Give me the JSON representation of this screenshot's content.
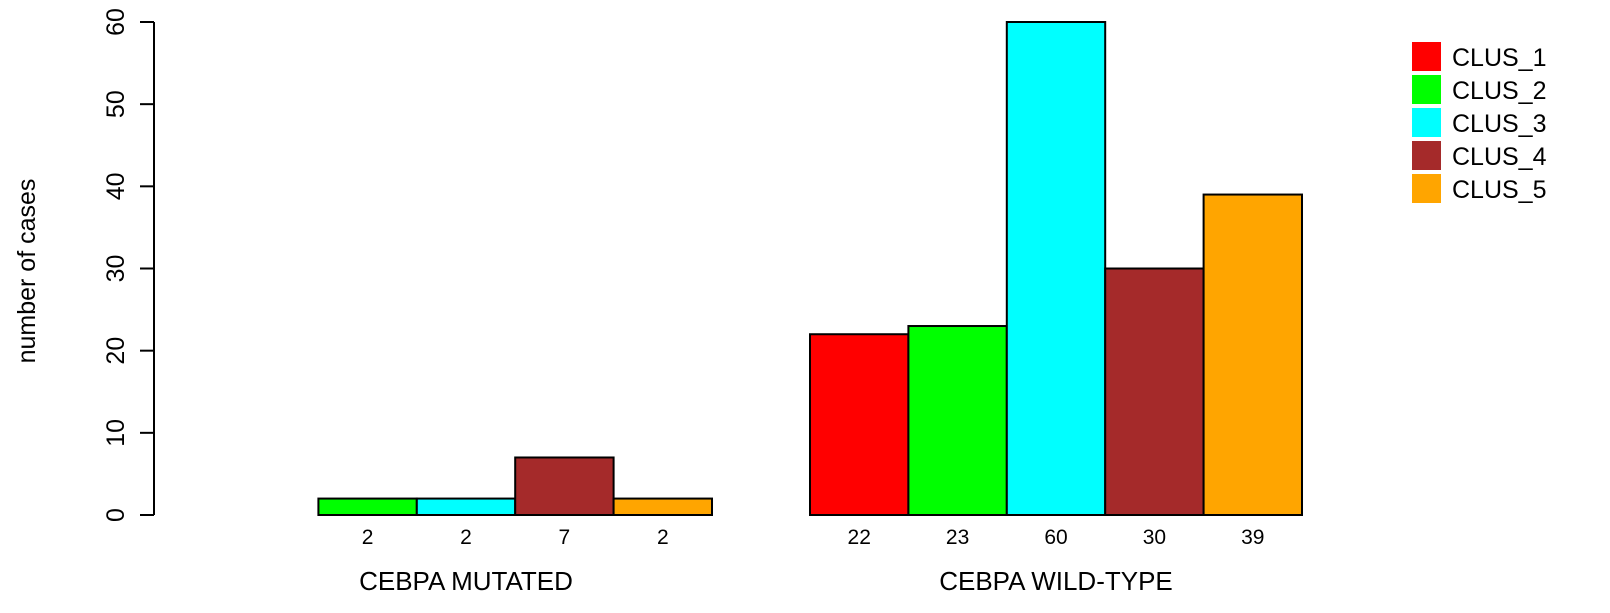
{
  "chart_data": {
    "type": "bar",
    "grouped": true,
    "title": "",
    "xlabel": "",
    "ylabel": "number of cases",
    "ylim": [
      0,
      60
    ],
    "yticks": [
      0,
      10,
      20,
      30,
      40,
      50,
      60
    ],
    "grid": false,
    "legend_position": "top-right",
    "groups": [
      "CEBPA MUTATED",
      "CEBPA WILD-TYPE"
    ],
    "series": [
      {
        "name": "CLUS_1",
        "color": "#ff0000",
        "values": [
          0,
          22
        ]
      },
      {
        "name": "CLUS_2",
        "color": "#00ff00",
        "values": [
          2,
          23
        ]
      },
      {
        "name": "CLUS_3",
        "color": "#00ffff",
        "values": [
          2,
          60
        ]
      },
      {
        "name": "CLUS_4",
        "color": "#a52a2a",
        "values": [
          7,
          30
        ]
      },
      {
        "name": "CLUS_5",
        "color": "#ffa500",
        "values": [
          2,
          39
        ]
      }
    ],
    "bar_labels": [
      [
        "",
        "2",
        "2",
        "7",
        "2"
      ],
      [
        "22",
        "23",
        "60",
        "30",
        "39"
      ]
    ]
  }
}
